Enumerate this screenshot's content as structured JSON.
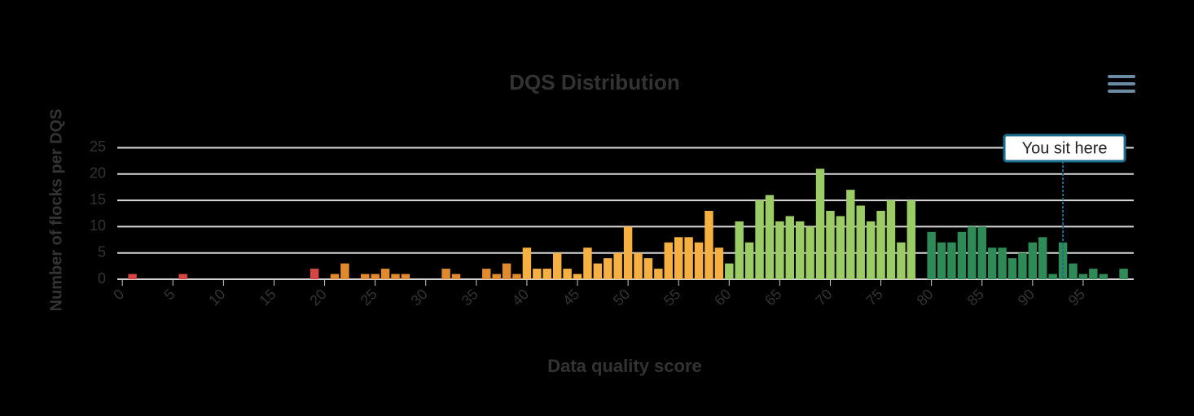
{
  "chart_data": {
    "type": "bar",
    "title": "DQS Distribution",
    "x_label": "Data quality score",
    "y_label": "Number of flocks per DQS",
    "series": [
      {
        "color": "#d64541",
        "x": [
          1,
          6,
          19
        ],
        "values": [
          1,
          1,
          2
        ]
      },
      {
        "color": "#e08a2e",
        "x": [
          21,
          22,
          24,
          25,
          26,
          27,
          28,
          32,
          33,
          36,
          37,
          38,
          39
        ],
        "values": [
          1,
          3,
          1,
          1,
          2,
          1,
          1,
          2,
          1,
          2,
          1,
          3,
          1
        ]
      },
      {
        "color": "#f5b041",
        "x": [
          40,
          41,
          42,
          43,
          44,
          45,
          46,
          47,
          48,
          49,
          50,
          51,
          52,
          53,
          54,
          55,
          56,
          57,
          58,
          59
        ],
        "values": [
          6,
          2,
          2,
          5,
          2,
          1,
          6,
          3,
          4,
          5,
          10,
          5,
          4,
          2,
          7,
          8,
          8,
          7,
          13,
          6
        ]
      },
      {
        "color": "#9ccc65",
        "x": [
          60,
          61,
          62,
          63,
          64,
          65,
          66,
          67,
          68,
          69,
          70,
          71,
          72,
          73,
          74,
          75,
          76,
          77,
          78
        ],
        "values": [
          3,
          11,
          7,
          15,
          16,
          11,
          12,
          11,
          10,
          21,
          13,
          12,
          17,
          14,
          11,
          13,
          15,
          7,
          15
        ]
      },
      {
        "color": "#2e8b57",
        "x": [
          80,
          81,
          82,
          83,
          84,
          85,
          86,
          87,
          88,
          89,
          90,
          91,
          92,
          93,
          94,
          95,
          96,
          97,
          99
        ],
        "values": [
          9,
          7,
          7,
          9,
          10,
          10,
          6,
          6,
          4,
          5,
          7,
          8,
          1,
          7,
          3,
          1,
          2,
          1,
          2
        ]
      }
    ],
    "xlim": [
      -0.5,
      100
    ],
    "xticks": [
      0,
      5,
      10,
      15,
      20,
      25,
      30,
      35,
      40,
      45,
      50,
      55,
      60,
      65,
      70,
      75,
      80,
      85,
      90,
      95
    ],
    "ylim": [
      0,
      26
    ],
    "yticks": [
      0,
      5,
      10,
      15,
      20,
      25
    ],
    "grid": true,
    "annotation": {
      "text": "You sit here",
      "x": 93
    }
  }
}
